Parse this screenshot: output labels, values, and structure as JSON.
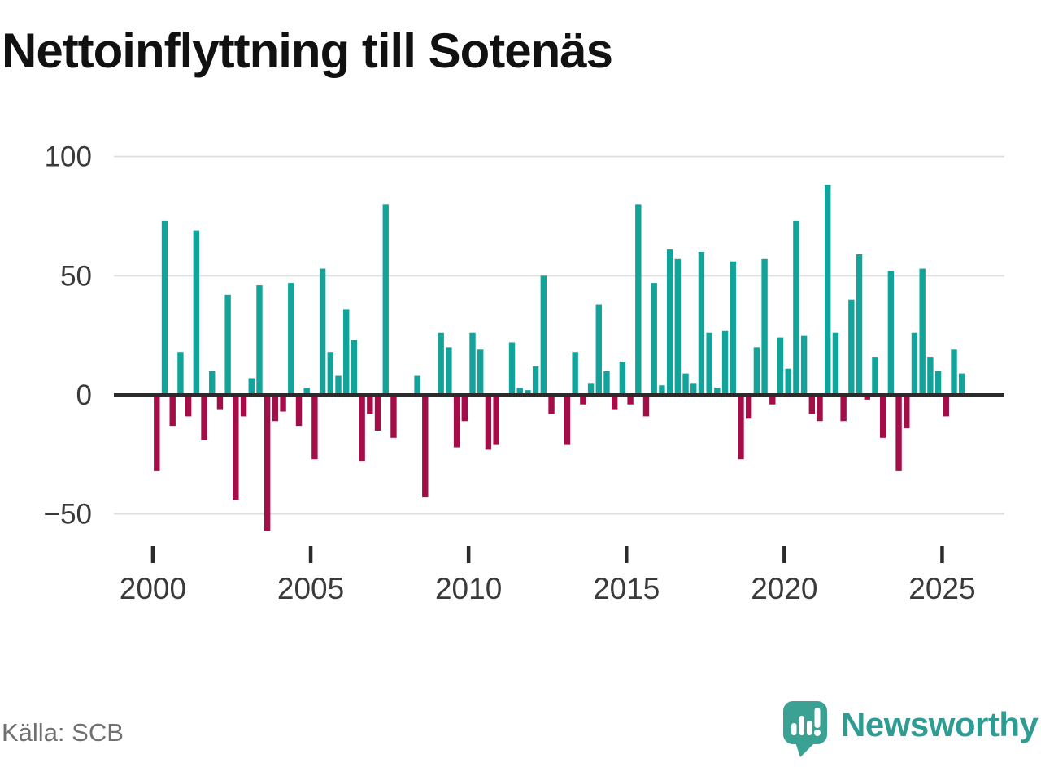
{
  "title": "Nettoinflyttning till Sotenäs",
  "source": "Källa: SCB",
  "brand": {
    "name": "Newsworthy",
    "icon": "newsworthy-speech-bubble-bar-chart-icon"
  },
  "colors": {
    "positive_bar": "#12a39a",
    "negative_bar": "#a50d49",
    "brand_teal": "#2f9c93",
    "logo_bubble": "#3aa193",
    "axis": "#2b2b2b",
    "grid": "#e0e0e0",
    "tick_label": "#3a3a3a",
    "title_text": "#111111",
    "source_text": "#707070"
  },
  "chart_data": {
    "type": "bar",
    "title": "Nettoinflyttning till Sotenäs",
    "xlabel": "",
    "ylabel": "",
    "ylim": [
      -65,
      105
    ],
    "yticks": [
      100,
      50,
      0,
      -50
    ],
    "xticks": [
      2000,
      2005,
      2010,
      2015,
      2020,
      2025
    ],
    "grid": true,
    "legend": false,
    "categories": [
      "2000Q1",
      "2000Q2",
      "2000Q3",
      "2000Q4",
      "2001Q1",
      "2001Q2",
      "2001Q3",
      "2001Q4",
      "2002Q1",
      "2002Q2",
      "2002Q3",
      "2002Q4",
      "2003Q1",
      "2003Q2",
      "2003Q3",
      "2003Q4",
      "2004Q1",
      "2004Q2",
      "2004Q3",
      "2004Q4",
      "2005Q1",
      "2005Q2",
      "2005Q3",
      "2005Q4",
      "2006Q1",
      "2006Q2",
      "2006Q3",
      "2006Q4",
      "2007Q1",
      "2007Q2",
      "2007Q3",
      "2007Q4",
      "2008Q1",
      "2008Q2",
      "2008Q3",
      "2008Q4",
      "2009Q1",
      "2009Q2",
      "2009Q3",
      "2009Q4",
      "2010Q1",
      "2010Q2",
      "2010Q3",
      "2010Q4",
      "2011Q1",
      "2011Q2",
      "2011Q3",
      "2011Q4",
      "2012Q1",
      "2012Q2",
      "2012Q3",
      "2012Q4",
      "2013Q1",
      "2013Q2",
      "2013Q3",
      "2013Q4",
      "2014Q1",
      "2014Q2",
      "2014Q3",
      "2014Q4",
      "2015Q1",
      "2015Q2",
      "2015Q3",
      "2015Q4",
      "2016Q1",
      "2016Q2",
      "2016Q3",
      "2016Q4",
      "2017Q1",
      "2017Q2",
      "2017Q3",
      "2017Q4",
      "2018Q1",
      "2018Q2",
      "2018Q3",
      "2018Q4",
      "2019Q1",
      "2019Q2",
      "2019Q3",
      "2019Q4",
      "2020Q1",
      "2020Q2",
      "2020Q3",
      "2020Q4",
      "2021Q1",
      "2021Q2",
      "2021Q3",
      "2021Q4",
      "2022Q1",
      "2022Q2",
      "2022Q3",
      "2022Q4",
      "2023Q1",
      "2023Q2",
      "2023Q3",
      "2023Q4",
      "2024Q1",
      "2024Q2",
      "2024Q3",
      "2024Q4",
      "2025Q1",
      "2025Q2",
      "2025Q3"
    ],
    "values": [
      -32,
      73,
      -13,
      18,
      -9,
      69,
      -19,
      10,
      -6,
      42,
      -44,
      -9,
      7,
      46,
      -57,
      -11,
      -7,
      47,
      -13,
      3,
      -27,
      53,
      18,
      8,
      36,
      23,
      -28,
      -8,
      -15,
      80,
      -18,
      0,
      0,
      8,
      -43,
      0,
      26,
      20,
      -22,
      -11,
      26,
      19,
      -23,
      -21,
      0,
      22,
      3,
      2,
      12,
      50,
      -8,
      0,
      -21,
      18,
      -4,
      5,
      38,
      10,
      -6,
      14,
      -4,
      80,
      -9,
      47,
      4,
      61,
      57,
      9,
      5,
      60,
      26,
      3,
      27,
      56,
      -27,
      -10,
      20,
      57,
      -4,
      24,
      11,
      73,
      25,
      -8,
      -11,
      88,
      26,
      -11,
      40,
      59,
      -2,
      16,
      -18,
      52,
      -32,
      -14,
      26,
      53,
      16,
      10,
      -9,
      19,
      9
    ]
  }
}
